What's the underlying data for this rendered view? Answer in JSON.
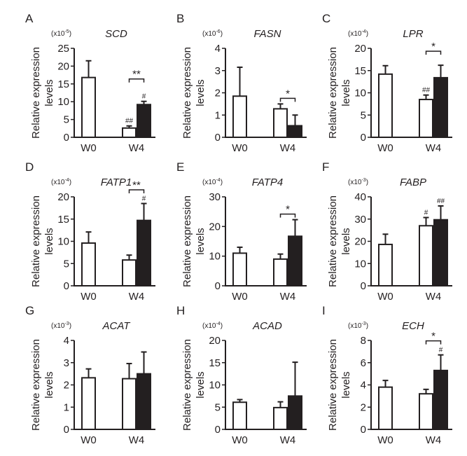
{
  "figure": {
    "ylabel_line1": "Relative expression",
    "ylabel_line2": "levels",
    "colors": {
      "ink": "#231f20",
      "white_bar": "#ffffff",
      "black_bar": "#231f20"
    }
  },
  "chart_data": [
    {
      "panel": "A",
      "type": "bar",
      "title": "SCD",
      "multiplier": "(x10",
      "exponent": "-5",
      "multiplier_close": ")",
      "ylim": [
        0,
        25
      ],
      "yticks": [
        0,
        5,
        10,
        15,
        20,
        25
      ],
      "categories": [
        "W0",
        "W4"
      ],
      "bars": [
        {
          "group": "W0",
          "fill": "white",
          "value": 16.8,
          "error": 4.7,
          "mark": ""
        },
        {
          "group": "W4",
          "fill": "white",
          "value": 2.6,
          "error": 0.6,
          "mark": "##"
        },
        {
          "group": "W4",
          "fill": "black",
          "value": 9.2,
          "error": 0.9,
          "mark": "#"
        }
      ],
      "bracket": {
        "label": "**"
      }
    },
    {
      "panel": "B",
      "type": "bar",
      "title": "FASN",
      "multiplier": "(x10",
      "exponent": "-6",
      "multiplier_close": ")",
      "ylim": [
        0,
        4
      ],
      "yticks": [
        0,
        1,
        2,
        3,
        4
      ],
      "categories": [
        "W0",
        "W4"
      ],
      "bars": [
        {
          "group": "W0",
          "fill": "white",
          "value": 1.85,
          "error": 1.3,
          "mark": ""
        },
        {
          "group": "W4",
          "fill": "white",
          "value": 1.28,
          "error": 0.22,
          "mark": ""
        },
        {
          "group": "W4",
          "fill": "black",
          "value": 0.52,
          "error": 0.48,
          "mark": ""
        }
      ],
      "bracket": {
        "label": "*"
      }
    },
    {
      "panel": "C",
      "type": "bar",
      "title": "LPR",
      "multiplier": "(x10",
      "exponent": "-4",
      "multiplier_close": ")",
      "ylim": [
        0,
        20
      ],
      "yticks": [
        0,
        5,
        10,
        15,
        20
      ],
      "categories": [
        "W0",
        "W4"
      ],
      "bars": [
        {
          "group": "W0",
          "fill": "white",
          "value": 14.2,
          "error": 1.9,
          "mark": ""
        },
        {
          "group": "W4",
          "fill": "white",
          "value": 8.5,
          "error": 1.0,
          "mark": "##"
        },
        {
          "group": "W4",
          "fill": "black",
          "value": 13.4,
          "error": 2.8,
          "mark": ""
        }
      ],
      "bracket": {
        "label": "*"
      }
    },
    {
      "panel": "D",
      "type": "bar",
      "title": "FATP1",
      "multiplier": "(x10",
      "exponent": "-4",
      "multiplier_close": ")",
      "ylim": [
        0,
        20
      ],
      "yticks": [
        0,
        5,
        10,
        15,
        20
      ],
      "categories": [
        "W0",
        "W4"
      ],
      "bars": [
        {
          "group": "W0",
          "fill": "white",
          "value": 9.6,
          "error": 2.5,
          "mark": ""
        },
        {
          "group": "W4",
          "fill": "white",
          "value": 5.8,
          "error": 1.1,
          "mark": ""
        },
        {
          "group": "W4",
          "fill": "black",
          "value": 14.7,
          "error": 3.8,
          "mark": "#"
        }
      ],
      "bracket": {
        "label": "**"
      }
    },
    {
      "panel": "E",
      "type": "bar",
      "title": "FATP4",
      "multiplier": "(x10",
      "exponent": "-4",
      "multiplier_close": ")",
      "ylim": [
        0,
        30
      ],
      "yticks": [
        0,
        10,
        20,
        30
      ],
      "categories": [
        "W0",
        "W4"
      ],
      "bars": [
        {
          "group": "W0",
          "fill": "white",
          "value": 11.0,
          "error": 2.0,
          "mark": ""
        },
        {
          "group": "W4",
          "fill": "white",
          "value": 9.0,
          "error": 1.7,
          "mark": ""
        },
        {
          "group": "W4",
          "fill": "black",
          "value": 16.7,
          "error": 5.6,
          "mark": ""
        }
      ],
      "bracket": {
        "label": "*"
      }
    },
    {
      "panel": "F",
      "type": "bar",
      "title": "FABP",
      "multiplier": "(x10",
      "exponent": "-3",
      "multiplier_close": ")",
      "ylim": [
        0,
        40
      ],
      "yticks": [
        0,
        10,
        20,
        30,
        40
      ],
      "categories": [
        "W0",
        "W4"
      ],
      "bars": [
        {
          "group": "W0",
          "fill": "white",
          "value": 18.6,
          "error": 4.6,
          "mark": ""
        },
        {
          "group": "W4",
          "fill": "white",
          "value": 27.0,
          "error": 3.7,
          "mark": "#"
        },
        {
          "group": "W4",
          "fill": "black",
          "value": 29.7,
          "error": 6.2,
          "mark": "##"
        }
      ],
      "bracket": null
    },
    {
      "panel": "G",
      "type": "bar",
      "title": "ACAT",
      "multiplier": "(x10",
      "exponent": "-3",
      "multiplier_close": ")",
      "ylim": [
        0,
        4
      ],
      "yticks": [
        0,
        1,
        2,
        3,
        4
      ],
      "categories": [
        "W0",
        "W4"
      ],
      "bars": [
        {
          "group": "W0",
          "fill": "white",
          "value": 2.32,
          "error": 0.4,
          "mark": ""
        },
        {
          "group": "W4",
          "fill": "white",
          "value": 2.28,
          "error": 0.68,
          "mark": ""
        },
        {
          "group": "W4",
          "fill": "black",
          "value": 2.5,
          "error": 0.98,
          "mark": ""
        }
      ],
      "bracket": null
    },
    {
      "panel": "H",
      "type": "bar",
      "title": "ACAD",
      "multiplier": "(x10",
      "exponent": "-4",
      "multiplier_close": ")",
      "ylim": [
        0,
        20
      ],
      "yticks": [
        0,
        5,
        10,
        15,
        20
      ],
      "categories": [
        "W0",
        "W4"
      ],
      "bars": [
        {
          "group": "W0",
          "fill": "white",
          "value": 6.1,
          "error": 0.6,
          "mark": ""
        },
        {
          "group": "W4",
          "fill": "white",
          "value": 4.9,
          "error": 1.3,
          "mark": ""
        },
        {
          "group": "W4",
          "fill": "black",
          "value": 7.5,
          "error": 7.6,
          "mark": ""
        }
      ],
      "bracket": null
    },
    {
      "panel": "I",
      "type": "bar",
      "title": "ECH",
      "multiplier": "(x10",
      "exponent": "-3",
      "multiplier_close": ")",
      "ylim": [
        0,
        8
      ],
      "yticks": [
        0,
        2,
        4,
        6,
        8
      ],
      "categories": [
        "W0",
        "W4"
      ],
      "bars": [
        {
          "group": "W0",
          "fill": "white",
          "value": 3.8,
          "error": 0.6,
          "mark": ""
        },
        {
          "group": "W4",
          "fill": "white",
          "value": 3.2,
          "error": 0.4,
          "mark": ""
        },
        {
          "group": "W4",
          "fill": "black",
          "value": 5.3,
          "error": 1.4,
          "mark": "#"
        }
      ],
      "bracket": {
        "label": "*"
      }
    }
  ]
}
